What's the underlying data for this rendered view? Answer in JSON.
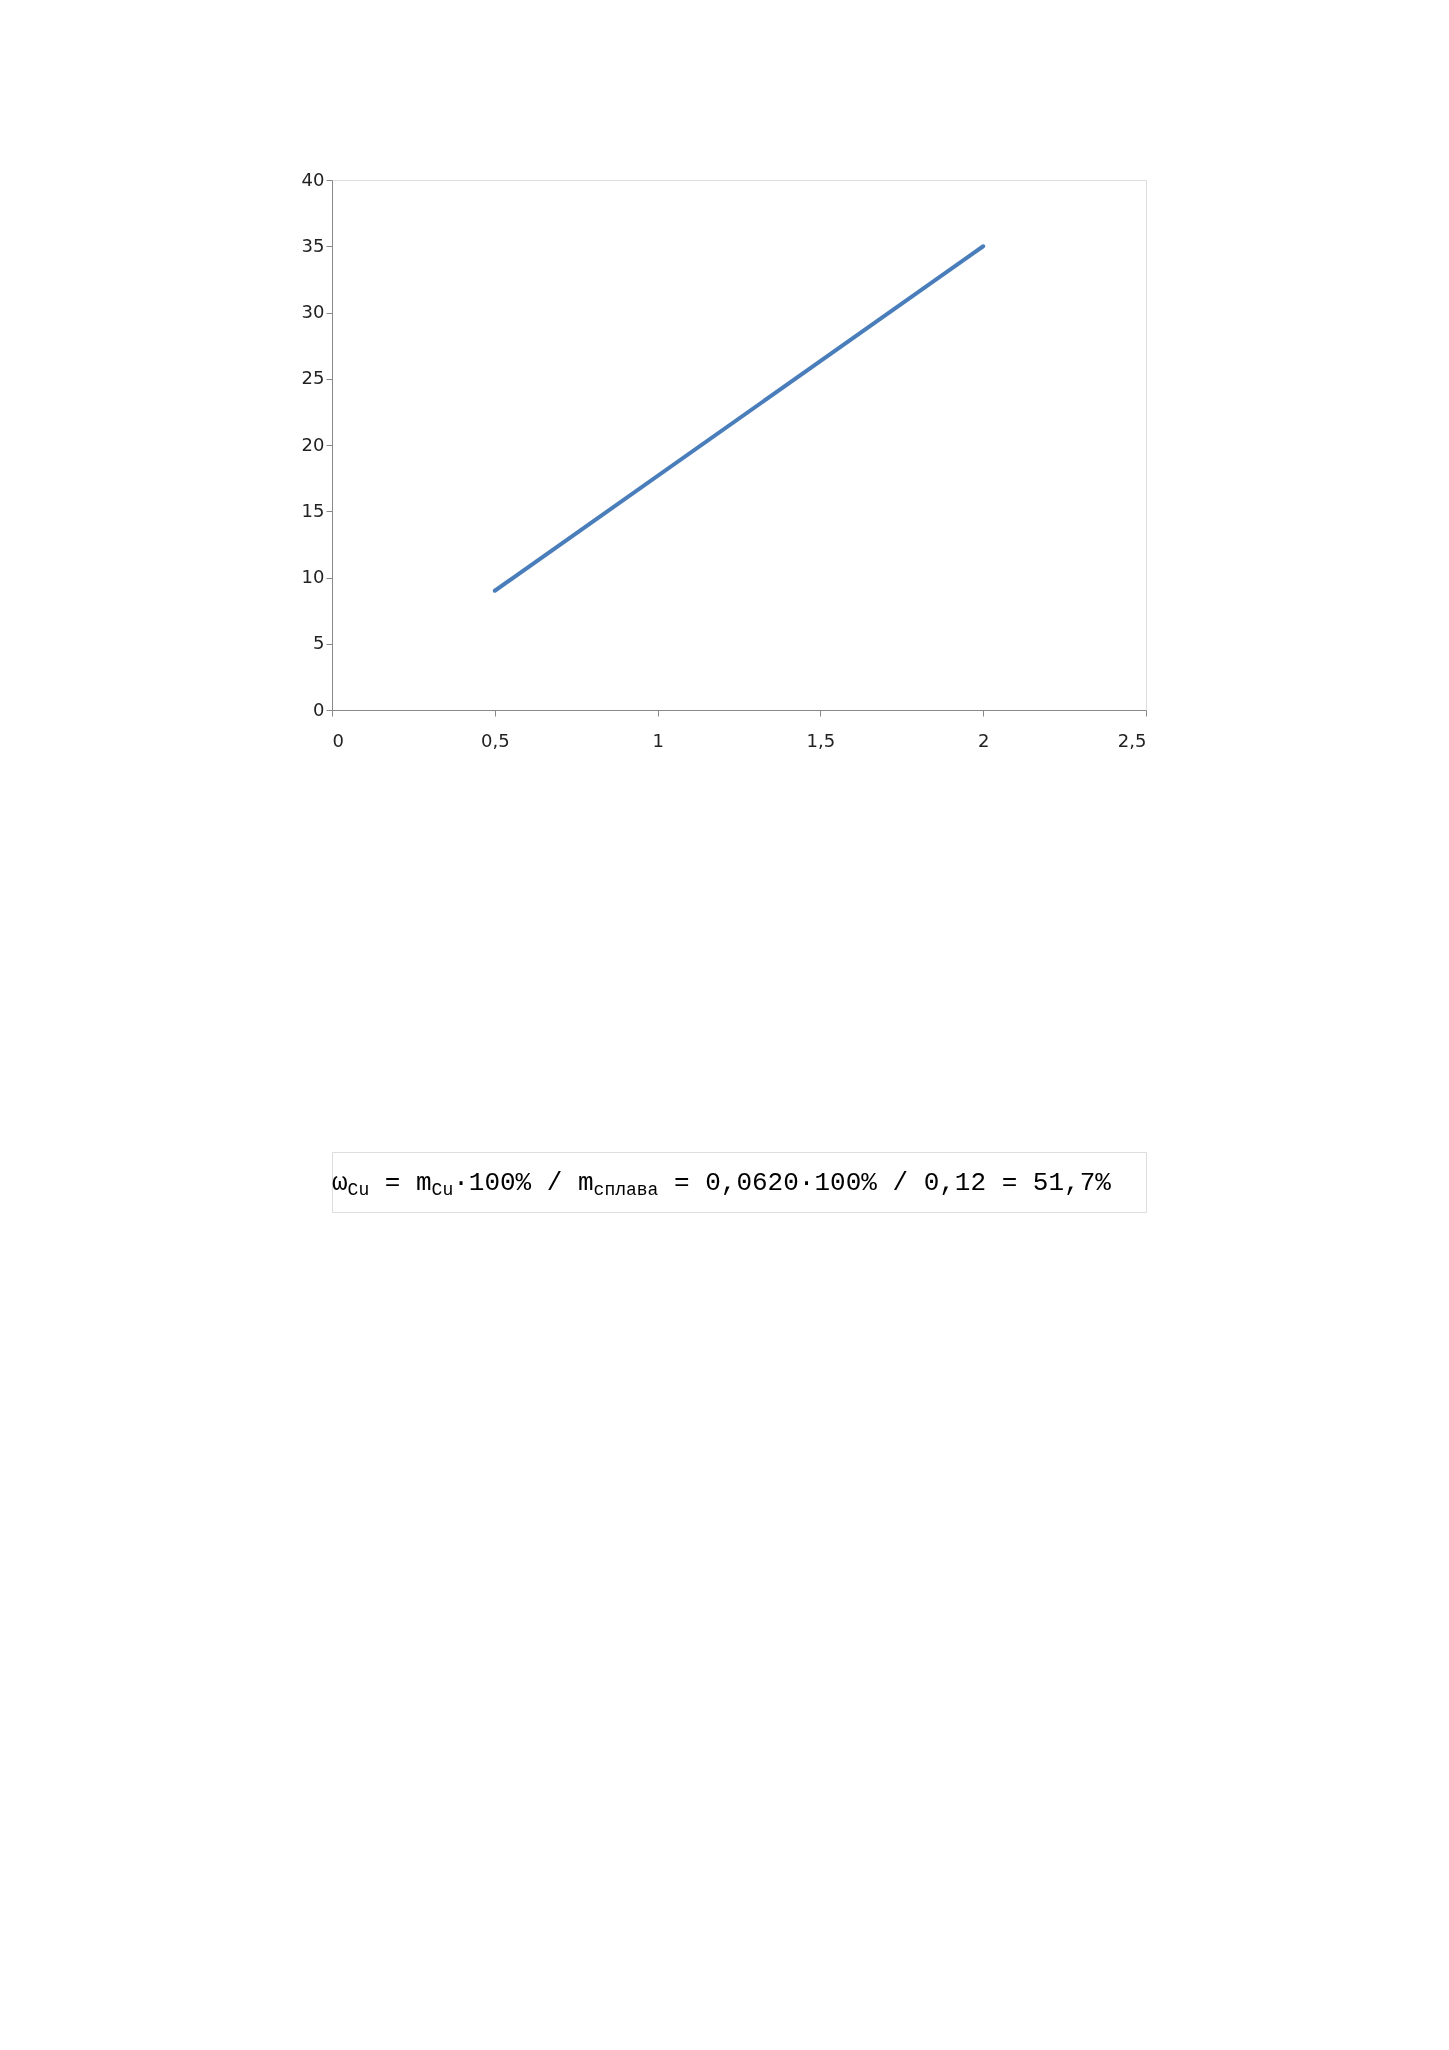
{
  "chart_data": {
    "type": "line",
    "x": [
      0.5,
      2
    ],
    "series": [
      {
        "color": "#4a7ebb",
        "values": [
          9,
          35
        ]
      }
    ],
    "xlim": [
      0,
      2.5
    ],
    "xticks": [
      0,
      {
        "value": 0.5,
        "label": "0,5"
      },
      1,
      {
        "value": 1.5,
        "label": "1,5"
      },
      2,
      {
        "value": 2.5,
        "label": "2,5"
      }
    ],
    "ylim": [
      0,
      40
    ],
    "yticks": [
      0,
      5,
      10,
      15,
      20,
      25,
      30,
      35,
      40
    ],
    "grid": false,
    "legend": false,
    "marker": "none",
    "line_style": "solid",
    "annotations": [
      "ω$_{Cu}$ = m$_{Cu}$·100% / m$_{сплава}$ = 0,0620·100% / 0,12 = 51,7%"
    ]
  }
}
